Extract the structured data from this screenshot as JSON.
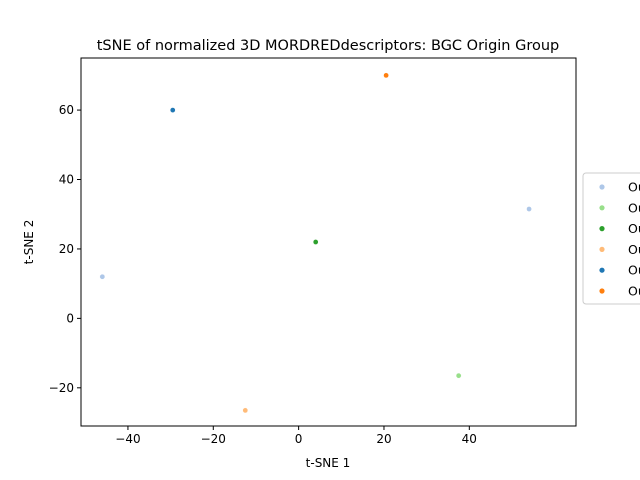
{
  "chart_data": {
    "type": "scatter",
    "title": "tSNE of normalized 3D MORDREDdescriptors: BGC Origin Group",
    "xlabel": "t-SNE 1",
    "ylabel": "t-SNE 2",
    "xlim": [
      -51,
      65
    ],
    "ylim": [
      -31,
      75
    ],
    "xticks": [
      -40,
      -20,
      0,
      20,
      40
    ],
    "yticks": [
      -20,
      0,
      20,
      40,
      60
    ],
    "xtick_labels": [
      "−40",
      "−20",
      "0",
      "20",
      "40"
    ],
    "ytick_labels": [
      "−20",
      "0",
      "20",
      "40",
      "60"
    ],
    "grid": false,
    "legend_position": "right",
    "series": [
      {
        "name": "Ou",
        "color": "#aec7e8",
        "points": [
          [
            -46,
            12
          ],
          [
            54,
            31.5
          ]
        ]
      },
      {
        "name": "Ou",
        "color": "#98df8a",
        "points": [
          [
            37.5,
            -16.5
          ]
        ]
      },
      {
        "name": "Ou",
        "color": "#2ca02c",
        "points": [
          [
            4,
            22
          ]
        ]
      },
      {
        "name": "Ou",
        "color": "#ffbb78",
        "points": [
          [
            -12.5,
            -26.5
          ]
        ]
      },
      {
        "name": "Ou",
        "color": "#1f77b4",
        "points": [
          [
            -29.5,
            60
          ]
        ]
      },
      {
        "name": "Ou",
        "color": "#ff7f0e",
        "points": [
          [
            20.5,
            70
          ]
        ]
      }
    ]
  }
}
